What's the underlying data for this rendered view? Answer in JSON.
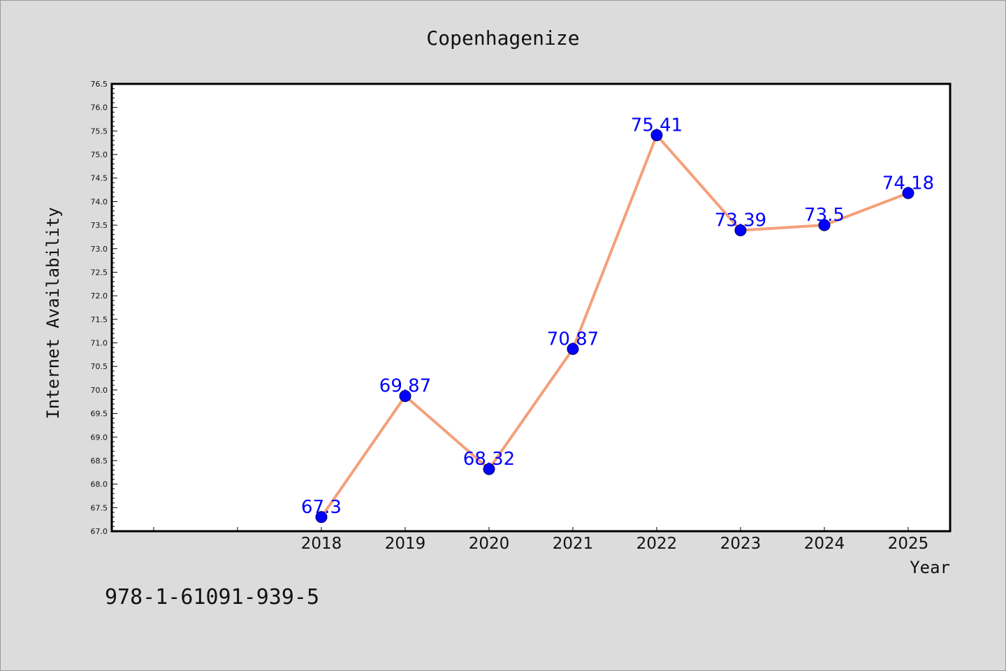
{
  "chart_data": {
    "type": "line",
    "title": "Copenhagenize",
    "xlabel": "Year",
    "ylabel": "Internet Availability",
    "categories": [
      "2018",
      "2019",
      "2020",
      "2021",
      "2022",
      "2023",
      "2024",
      "2025"
    ],
    "series": [
      {
        "values": [
          67.3,
          69.87,
          68.32,
          70.87,
          75.41,
          73.39,
          73.5,
          74.18
        ],
        "labels": [
          "67.3",
          "69.87",
          "68.32",
          "70.87",
          "75.41",
          "73.39",
          "73.5",
          "74.18"
        ],
        "line_color": "#f4a07a",
        "marker_color": "#0000ff"
      }
    ],
    "ylim": [
      67.0,
      76.5
    ],
    "y_ticks": [
      "67.0",
      "67.5",
      "68.0",
      "68.5",
      "69.0",
      "69.5",
      "70.0",
      "70.5",
      "71.0",
      "71.5",
      "72.0",
      "72.5",
      "73.0",
      "73.5",
      "74.0",
      "74.5",
      "75.0",
      "75.5",
      "76.0",
      "76.5"
    ],
    "grid": false,
    "background": "#dcdcdc",
    "plot_background": "#ffffff"
  },
  "footer": {
    "code": "978-1-61091-939-5"
  }
}
